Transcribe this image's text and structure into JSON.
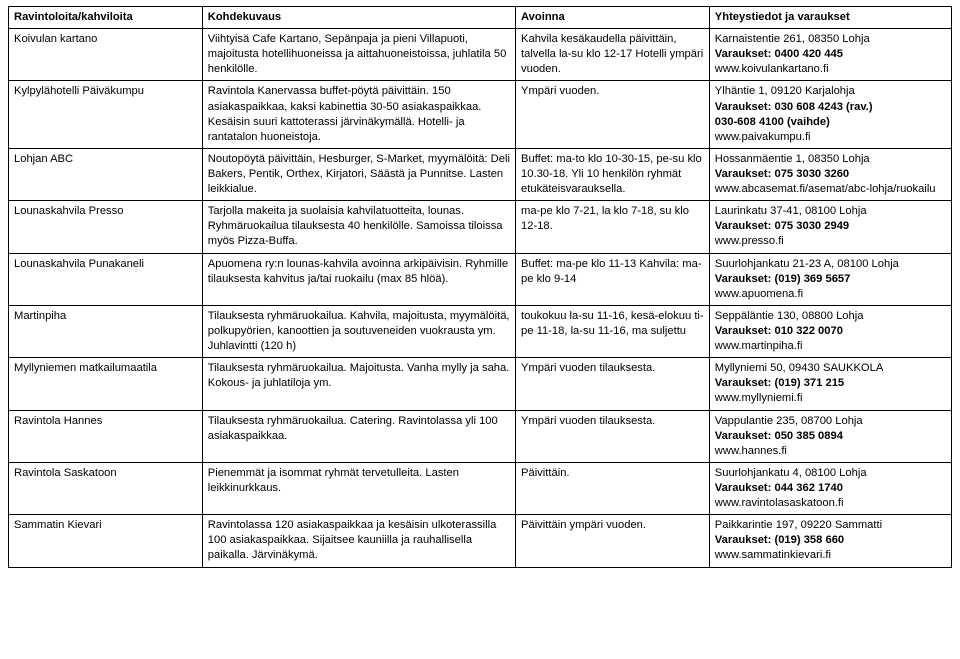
{
  "headers": [
    "Ravintoloita/kahviloita",
    "Kohdekuvaus",
    "Avoinna",
    "Yhteystiedot ja varaukset"
  ],
  "rows": [
    {
      "name": "Koivulan kartano",
      "desc": "Viihtyisä Cafe Kartano, Sepänpaja ja pieni Villapuoti, majoitusta hotellihuoneissa ja aittahuoneistoissa, juhlatila 50 henkilölle.",
      "open": "Kahvila kesäkaudella päivittäin, talvella la-su klo 12-17 Hotelli ympäri vuoden.",
      "addr": "Karnaistentie 261, 08350 Lohja",
      "book": "Varaukset: 0400 420 445",
      "web": "www.koivulankartano.fi"
    },
    {
      "name": "Kylpylähotelli Päiväkumpu",
      "desc": "Ravintola Kanervassa buffet-pöytä päivittäin. 150 asiakaspaikkaa, kaksi kabinettia 30-50 asiakaspaikkaa. Kesäisin suuri kattoterassi järvinäkymällä. Hotelli- ja rantatalon huoneistoja.",
      "open": "Ympäri vuoden.",
      "addr": "Ylhäntie 1, 09120 Karjalohja",
      "book": "Varaukset: 030 608 4243 (rav.)",
      "book2": "030-608 4100 (vaihde)",
      "web": "www.paivakumpu.fi"
    },
    {
      "name": "Lohjan ABC",
      "desc": "Noutopöytä päivittäin, Hesburger, S-Market, myymälöitä: Deli Bakers, Pentik, Orthex, Kirjatori, Säästä ja Punnitse. Lasten leikkialue.",
      "open": "Buffet: ma-to klo 10-30-15, pe-su klo 10.30-18. Yli 10 henkilön ryhmät etukäteisvarauksella.",
      "addr": "Hossanmäentie 1, 08350 Lohja",
      "book": "Varaukset: 075 3030 3260",
      "web": "www.abcasemat.fi/asemat/abc-lohja/ruokailu"
    },
    {
      "name": "Lounaskahvila Presso",
      "desc": "Tarjolla makeita ja suolaisia kahvilatuotteita, lounas. Ryhmäruokailua tilauksesta 40 henkilölle. Samoissa tiloissa myös Pizza-Buffa.",
      "open": "ma-pe klo 7-21, la klo 7-18, su klo 12-18.",
      "addr": "Laurinkatu 37-41, 08100 Lohja",
      "book": "Varaukset: 075 3030 2949",
      "web": "www.presso.fi"
    },
    {
      "name": "Lounaskahvila Punakaneli",
      "desc": "Apuomena ry:n lounas-kahvila avoinna arkipäivisin. Ryhmille tilauksesta kahvitus ja/tai ruokailu (max 85 hlöä).",
      "open": "Buffet: ma-pe klo 11-13 Kahvila: ma-pe klo 9-14",
      "addr": "Suurlohjankatu 21-23 A, 08100 Lohja",
      "book": "Varaukset: (019) 369 5657",
      "web": "www.apuomena.fi"
    },
    {
      "name": "Martinpiha",
      "desc": "Tilauksesta ryhmäruokailua. Kahvila, majoitusta, myymälöitä, polkupyörien, kanoottien ja soutuveneiden vuokrausta ym. Juhlavintti (120 h)",
      "open": "toukokuu la-su 11-16, kesä-elokuu ti-pe 11-18, la-su 11-16, ma suljettu",
      "addr": "Seppäläntie 130, 08800 Lohja",
      "book": "Varaukset: 010 322 0070",
      "web": "www.martinpiha.fi"
    },
    {
      "name": "Myllyniemen matkailumaatila",
      "desc": "Tilauksesta ryhmäruokailua. Majoitusta. Vanha mylly ja saha. Kokous- ja juhlatiloja ym.",
      "open": "Ympäri vuoden tilauksesta.",
      "addr": "Myllyniemi 50, 09430 SAUKKOLA",
      "book": "Varaukset: (019) 371 215",
      "web": "www.myllyniemi.fi"
    },
    {
      "name": "Ravintola Hannes",
      "desc": "Tilauksesta ryhmäruokailua. Catering. Ravintolassa yli 100 asiakaspaikkaa.",
      "open": "Ympäri vuoden tilauksesta.",
      "addr": "Vappulantie 235, 08700 Lohja",
      "book": "Varaukset: 050 385 0894",
      "web": "www.hannes.fi"
    },
    {
      "name": "Ravintola Saskatoon",
      "desc": "Pienemmät ja isommat ryhmät tervetulleita. Lasten leikkinurkkaus.",
      "open": "Päivittäin.",
      "addr": "Suurlohjankatu 4, 08100 Lohja",
      "book": "Varaukset: 044 362 1740",
      "web": "www.ravintolasaskatoon.fi"
    },
    {
      "name": "Sammatin Kievari",
      "desc": "Ravintolassa 120 asiakaspaikkaa ja kesäisin ulkoterassilla 100 asiakaspaikkaa. Sijaitsee kauniilla ja rauhallisella paikalla. Järvinäkymä.",
      "open": "Päivittäin ympäri vuoden.",
      "addr": "Paikkarintie 197, 09220 Sammatti",
      "book": "Varaukset: (019) 358 660",
      "web": "www.sammatinkievari.fi"
    }
  ]
}
